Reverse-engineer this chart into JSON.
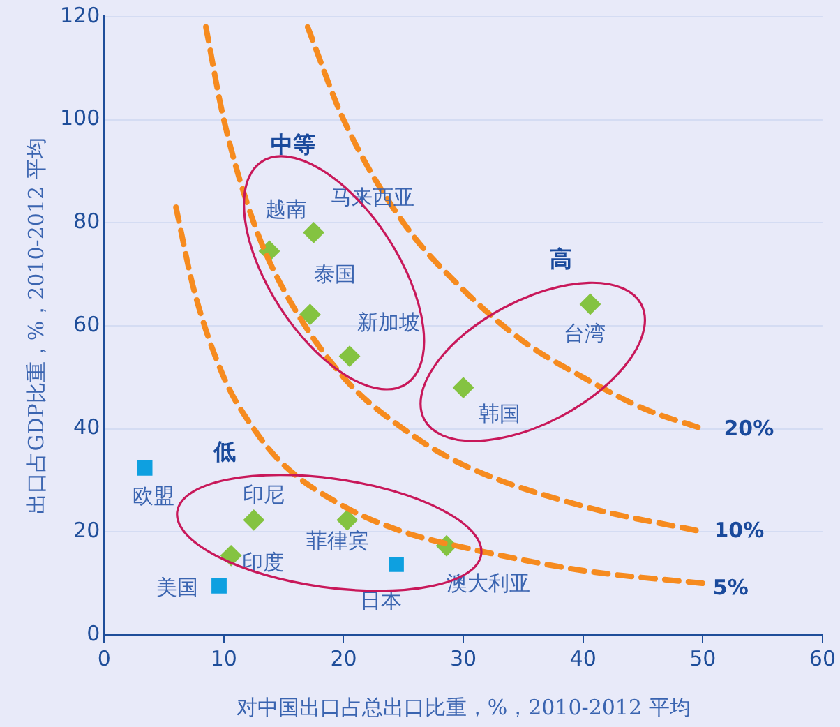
{
  "chart_data": {
    "type": "scatter",
    "xlabel": "对中国出口占总出口比重，%，2010-2012 平均",
    "ylabel": "出口占GDP比重，%，2010-2012 平均",
    "xlim": [
      0,
      60
    ],
    "xticks": [
      0,
      10,
      20,
      30,
      40,
      50,
      60
    ],
    "ylim": [
      0,
      120
    ],
    "yticks": [
      0,
      20,
      40,
      60,
      80,
      100,
      120
    ],
    "grid": "y",
    "legend": false,
    "series": [
      {
        "type": "line",
        "color": "#f68b1f",
        "line_style": "dashed",
        "marker": "none",
        "x": [
          17,
          20,
          25,
          30,
          35,
          40,
          45,
          50
        ],
        "values": [
          118,
          100,
          80,
          67,
          57,
          50,
          44,
          40
        ]
      },
      {
        "type": "line",
        "color": "#f68b1f",
        "line_style": "dashed",
        "marker": "none",
        "x": [
          8.5,
          10,
          12.5,
          15,
          20,
          25,
          30,
          40,
          50
        ],
        "values": [
          118,
          100,
          80,
          67,
          50,
          40,
          33,
          25,
          20
        ]
      },
      {
        "type": "line",
        "color": "#f68b1f",
        "line_style": "dashed",
        "marker": "none",
        "x": [
          6,
          7.5,
          10,
          12.5,
          15,
          20,
          25,
          30,
          40,
          50
        ],
        "values": [
          83,
          67,
          50,
          40,
          33,
          25,
          20,
          17,
          12.5,
          10
        ]
      },
      {
        "color": "#84c341",
        "marker": "diamond",
        "x": [
          13.8,
          17.5,
          17.2,
          20.5,
          40.6,
          30.0,
          12.5,
          20.3,
          10.6,
          28.6
        ],
        "values": [
          74.5,
          78.1,
          62.2,
          54.1,
          64.2,
          48.0,
          22.3,
          22.3,
          15.4,
          17.3
        ]
      },
      {
        "color": "#0ea0e0",
        "marker": "square",
        "x": [
          3.4,
          9.6,
          24.4
        ],
        "values": [
          32.4,
          9.5,
          13.7
        ]
      }
    ],
    "annotations": [
      {
        "text": "越南",
        "x": 13.8,
        "y": 74.5
      },
      {
        "text": "马来西亚",
        "x": 17.5,
        "y": 78.1
      },
      {
        "text": "泰国",
        "x": 17.2,
        "y": 62.2
      },
      {
        "text": "新加坡",
        "x": 20.5,
        "y": 54.1
      },
      {
        "text": "台湾",
        "x": 40.6,
        "y": 64.2
      },
      {
        "text": "韩国",
        "x": 30.0,
        "y": 48.0
      },
      {
        "text": "印尼",
        "x": 12.5,
        "y": 22.3
      },
      {
        "text": "菲律宾",
        "x": 20.3,
        "y": 22.3
      },
      {
        "text": "印度",
        "x": 10.6,
        "y": 15.4
      },
      {
        "text": "澳大利亚",
        "x": 28.6,
        "y": 17.3
      },
      {
        "text": "欧盟",
        "x": 3.4,
        "y": 32.4
      },
      {
        "text": "美国",
        "x": 9.6,
        "y": 9.5
      },
      {
        "text": "日本",
        "x": 24.4,
        "y": 13.7
      },
      "中等",
      "高",
      "低",
      {
        "text": "20%",
        "x": 50,
        "y": 40
      },
      {
        "text": "10%",
        "x": 50,
        "y": 20
      },
      {
        "text": "5%",
        "x": 50,
        "y": 10
      }
    ]
  }
}
